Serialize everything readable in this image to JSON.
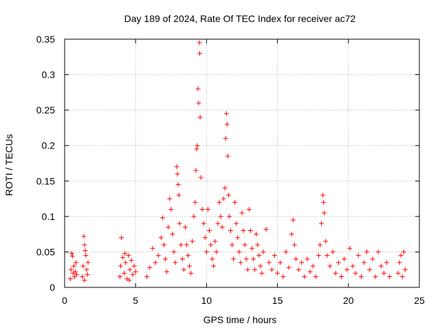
{
  "chart_data": {
    "type": "scatter",
    "title": "Day 189 of 2024, Rate Of TEC Index for receiver ac72",
    "xlabel": "GPS time / hours",
    "ylabel": "ROTI / TECUs",
    "xlim": [
      0,
      25
    ],
    "ylim": [
      0,
      0.35
    ],
    "x_ticks": [
      0,
      5,
      10,
      15,
      20,
      25
    ],
    "x_tick_labels": [
      "0",
      "5",
      "10",
      "15",
      "20",
      "25"
    ],
    "y_ticks": [
      0,
      0.05,
      0.1,
      0.15,
      0.2,
      0.25,
      0.3,
      0.35
    ],
    "y_tick_labels": [
      "0",
      "0.05",
      "0.1",
      "0.15",
      "0.2",
      "0.25",
      "0.3",
      "0.35"
    ],
    "grid": true,
    "marker": "+",
    "color": "#ff0000",
    "series": [
      {
        "name": "ROTI",
        "points": [
          [
            0.4,
            0.012
          ],
          [
            0.45,
            0.025
          ],
          [
            0.5,
            0.048
          ],
          [
            0.55,
            0.044
          ],
          [
            0.6,
            0.02
          ],
          [
            0.65,
            0.03
          ],
          [
            0.7,
            0.015
          ],
          [
            0.75,
            0.022
          ],
          [
            0.8,
            0.035
          ],
          [
            0.85,
            0.018
          ],
          [
            1.25,
            0.015
          ],
          [
            1.3,
            0.03
          ],
          [
            1.35,
            0.072
          ],
          [
            1.4,
            0.06
          ],
          [
            1.45,
            0.052
          ],
          [
            1.5,
            0.045
          ],
          [
            1.55,
            0.025
          ],
          [
            1.6,
            0.018
          ],
          [
            1.65,
            0.035
          ],
          [
            1.4,
            0.01
          ],
          [
            3.9,
            0.015
          ],
          [
            3.95,
            0.03
          ],
          [
            4.0,
            0.07
          ],
          [
            4.1,
            0.042
          ],
          [
            4.2,
            0.02
          ],
          [
            4.3,
            0.035
          ],
          [
            4.4,
            0.012
          ],
          [
            4.5,
            0.045
          ],
          [
            4.6,
            0.025
          ],
          [
            4.7,
            0.038
          ],
          [
            4.8,
            0.018
          ],
          [
            4.9,
            0.03
          ],
          [
            5.0,
            0.022
          ],
          [
            4.25,
            0.048
          ],
          [
            4.55,
            0.01
          ],
          [
            5.8,
            0.015
          ],
          [
            6.0,
            0.028
          ],
          [
            6.2,
            0.055
          ],
          [
            6.4,
            0.035
          ],
          [
            6.6,
            0.045
          ],
          [
            6.8,
            0.07
          ],
          [
            6.9,
            0.098
          ],
          [
            7.0,
            0.06
          ],
          [
            7.1,
            0.04
          ],
          [
            7.2,
            0.022
          ],
          [
            7.3,
            0.085
          ],
          [
            7.4,
            0.125
          ],
          [
            7.5,
            0.11
          ],
          [
            7.6,
            0.075
          ],
          [
            7.7,
            0.05
          ],
          [
            7.8,
            0.035
          ],
          [
            7.9,
            0.17
          ],
          [
            7.95,
            0.16
          ],
          [
            8.0,
            0.145
          ],
          [
            8.05,
            0.13
          ],
          [
            8.1,
            0.09
          ],
          [
            8.2,
            0.06
          ],
          [
            8.3,
            0.04
          ],
          [
            8.4,
            0.025
          ],
          [
            8.5,
            0.085
          ],
          [
            8.6,
            0.06
          ],
          [
            8.7,
            0.045
          ],
          [
            8.8,
            0.03
          ],
          [
            8.9,
            0.02
          ],
          [
            9.0,
            0.065
          ],
          [
            9.1,
            0.1
          ],
          [
            9.2,
            0.12
          ],
          [
            9.25,
            0.165
          ],
          [
            9.3,
            0.195
          ],
          [
            9.35,
            0.2
          ],
          [
            9.4,
            0.28
          ],
          [
            9.45,
            0.26
          ],
          [
            9.5,
            0.345
          ],
          [
            9.52,
            0.33
          ],
          [
            9.55,
            0.24
          ],
          [
            9.6,
            0.155
          ],
          [
            9.7,
            0.11
          ],
          [
            9.8,
            0.09
          ],
          [
            9.9,
            0.07
          ],
          [
            10.0,
            0.05
          ],
          [
            10.1,
            0.11
          ],
          [
            10.2,
            0.08
          ],
          [
            10.3,
            0.06
          ],
          [
            10.4,
            0.04
          ],
          [
            10.5,
            0.03
          ],
          [
            10.6,
            0.065
          ],
          [
            10.7,
            0.05
          ],
          [
            10.8,
            0.09
          ],
          [
            10.9,
            0.12
          ],
          [
            11.0,
            0.1
          ],
          [
            11.1,
            0.085
          ],
          [
            11.2,
            0.125
          ],
          [
            11.3,
            0.14
          ],
          [
            11.35,
            0.21
          ],
          [
            11.4,
            0.245
          ],
          [
            11.45,
            0.23
          ],
          [
            11.5,
            0.185
          ],
          [
            11.55,
            0.13
          ],
          [
            11.6,
            0.1
          ],
          [
            11.7,
            0.08
          ],
          [
            11.8,
            0.06
          ],
          [
            11.9,
            0.04
          ],
          [
            12.0,
            0.12
          ],
          [
            12.1,
            0.09
          ],
          [
            12.2,
            0.07
          ],
          [
            12.3,
            0.05
          ],
          [
            12.4,
            0.035
          ],
          [
            12.5,
            0.105
          ],
          [
            12.6,
            0.08
          ],
          [
            12.7,
            0.06
          ],
          [
            12.8,
            0.04
          ],
          [
            12.9,
            0.025
          ],
          [
            13.0,
            0.11
          ],
          [
            13.1,
            0.08
          ],
          [
            13.2,
            0.055
          ],
          [
            13.3,
            0.04
          ],
          [
            13.4,
            0.025
          ],
          [
            13.5,
            0.075
          ],
          [
            13.6,
            0.06
          ],
          [
            13.7,
            0.045
          ],
          [
            13.8,
            0.03
          ],
          [
            13.9,
            0.02
          ],
          [
            14.0,
            0.05
          ],
          [
            14.2,
            0.082
          ],
          [
            14.4,
            0.035
          ],
          [
            14.6,
            0.025
          ],
          [
            14.8,
            0.045
          ],
          [
            15.0,
            0.02
          ],
          [
            15.2,
            0.035
          ],
          [
            15.4,
            0.015
          ],
          [
            15.6,
            0.05
          ],
          [
            15.8,
            0.028
          ],
          [
            16.0,
            0.075
          ],
          [
            16.1,
            0.095
          ],
          [
            16.2,
            0.06
          ],
          [
            16.3,
            0.04
          ],
          [
            16.5,
            0.025
          ],
          [
            16.7,
            0.035
          ],
          [
            16.9,
            0.015
          ],
          [
            17.1,
            0.04
          ],
          [
            17.3,
            0.022
          ],
          [
            17.5,
            0.03
          ],
          [
            17.7,
            0.015
          ],
          [
            17.9,
            0.045
          ],
          [
            18.0,
            0.06
          ],
          [
            18.1,
            0.09
          ],
          [
            18.2,
            0.13
          ],
          [
            18.25,
            0.12
          ],
          [
            18.3,
            0.105
          ],
          [
            18.4,
            0.065
          ],
          [
            18.5,
            0.045
          ],
          [
            18.7,
            0.03
          ],
          [
            18.9,
            0.05
          ],
          [
            19.1,
            0.02
          ],
          [
            19.3,
            0.035
          ],
          [
            19.5,
            0.015
          ],
          [
            19.7,
            0.04
          ],
          [
            19.9,
            0.025
          ],
          [
            20.1,
            0.055
          ],
          [
            20.3,
            0.03
          ],
          [
            20.5,
            0.02
          ],
          [
            20.7,
            0.045
          ],
          [
            20.9,
            0.015
          ],
          [
            21.1,
            0.035
          ],
          [
            21.3,
            0.05
          ],
          [
            21.5,
            0.025
          ],
          [
            21.7,
            0.04
          ],
          [
            21.9,
            0.015
          ],
          [
            22.1,
            0.05
          ],
          [
            22.3,
            0.03
          ],
          [
            22.5,
            0.02
          ],
          [
            22.7,
            0.035
          ],
          [
            22.9,
            0.015
          ],
          [
            23.5,
            0.02
          ],
          [
            23.6,
            0.035
          ],
          [
            23.7,
            0.045
          ],
          [
            23.8,
            0.015
          ],
          [
            23.9,
            0.05
          ],
          [
            24.0,
            0.025
          ]
        ]
      }
    ]
  }
}
